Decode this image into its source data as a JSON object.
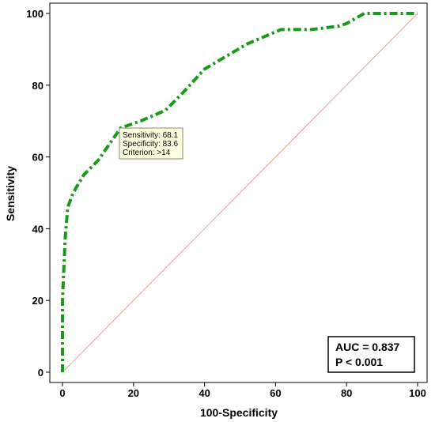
{
  "chart_data": {
    "type": "line",
    "title": "",
    "xlabel": "100-Specificity",
    "ylabel": "Sensitivity",
    "xlim": [
      0,
      100
    ],
    "ylim": [
      0,
      100
    ],
    "xticks": [
      "0",
      "20",
      "40",
      "60",
      "80",
      "100"
    ],
    "yticks": [
      "0",
      "20",
      "40",
      "60",
      "80",
      "100"
    ],
    "grid": false,
    "series": [
      {
        "name": "",
        "style": "dash-dot",
        "color": "#1a9a1a",
        "x": [
          0,
          0,
          0.3,
          0.8,
          1.5,
          3,
          6,
          10,
          16.4,
          22,
          29,
          34,
          40,
          46,
          52,
          58,
          61.5,
          70,
          78,
          80,
          85,
          100
        ],
        "y": [
          0,
          20,
          27,
          38,
          46,
          50,
          55,
          59,
          68.1,
          70,
          73,
          78,
          84.5,
          88,
          91.5,
          94,
          95.5,
          95.5,
          96.5,
          97.2,
          100,
          100
        ]
      },
      {
        "name": "",
        "style": "solid",
        "color": "#e8a090",
        "x": [
          0,
          100
        ],
        "y": [
          0,
          100
        ]
      }
    ],
    "tooltip": {
      "sensitivity": "Sensitivity: 68.1",
      "specificity": "Specificity: 83.6",
      "criterion": "Criterion: >14",
      "point": {
        "x": 16.4,
        "y": 68.1
      }
    },
    "stats": {
      "auc": "AUC = 0.837",
      "p": "P < 0.001"
    }
  }
}
